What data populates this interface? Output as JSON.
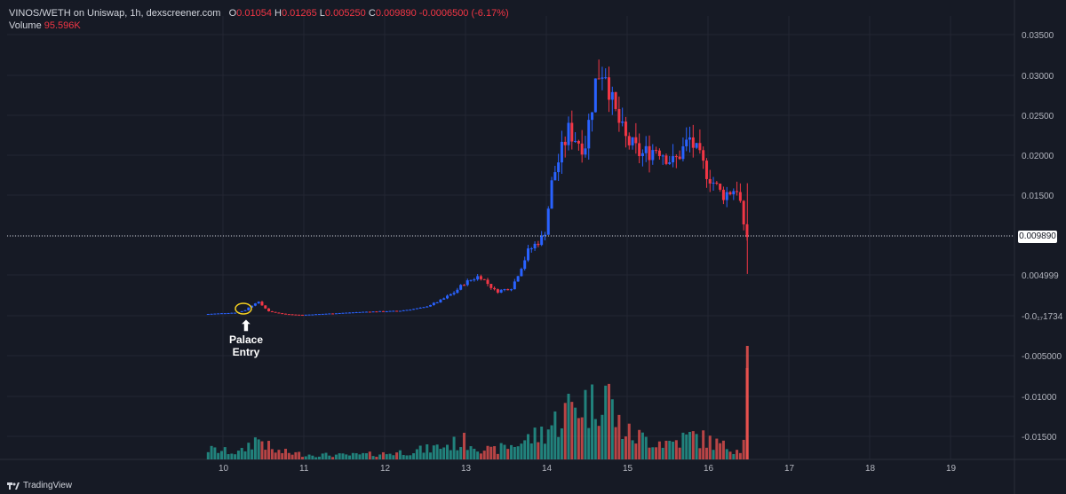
{
  "legend": {
    "pair": "VINOS/WETH on Uniswap, 1h, dexscreener.com",
    "o_label": "O",
    "o": "0.01054",
    "h_label": "H",
    "h": "0.01265",
    "l_label": "L",
    "l": "0.005250",
    "c_label": "C",
    "c": "0.009890",
    "change": "-0.0006500 (-6.17%)",
    "volume_label": "Volume",
    "volume": "95.596K"
  },
  "last_price_label": "0.009890",
  "annotation": {
    "text": "Palace Entry",
    "arrow": "⬆"
  },
  "footer": {
    "brand": "TradingView",
    "icon": "tradingview-logo-icon"
  },
  "colors": {
    "background": "#161a25",
    "up": "#2962ff",
    "down": "#f23645",
    "vol_up": "#26a69a",
    "vol_down": "#ef5350",
    "grid": "#232632",
    "annotation_circle": "#f5d020"
  },
  "chart_data": {
    "type": "candlestick",
    "x_ticks": [
      "10",
      "11",
      "12",
      "13",
      "14",
      "15",
      "16",
      "17",
      "18",
      "19"
    ],
    "y_ticks": [
      "0.03500",
      "0.03000",
      "0.02500",
      "0.02000",
      "0.01500",
      "0.009890",
      "0.004999",
      "-0.0₁₇1734",
      "-0.005000",
      "-0.01000",
      "-0.01500"
    ],
    "grid": true,
    "series": [
      {
        "name": "Volume",
        "note": "volume bars, relative heights",
        "values": []
      }
    ],
    "price_points": [
      [
        9.8,
        0.0002
      ],
      [
        10.0,
        0.0003
      ],
      [
        10.2,
        0.0004
      ],
      [
        10.3,
        0.0007
      ],
      [
        10.45,
        0.0018
      ],
      [
        10.6,
        0.0005
      ],
      [
        10.8,
        0.0002
      ],
      [
        11.0,
        0.0001
      ],
      [
        11.4,
        0.0003
      ],
      [
        11.8,
        0.0005
      ],
      [
        12.2,
        0.0006
      ],
      [
        12.5,
        0.001
      ],
      [
        12.7,
        0.0018
      ],
      [
        12.9,
        0.003
      ],
      [
        13.0,
        0.004
      ],
      [
        13.2,
        0.005
      ],
      [
        13.4,
        0.003
      ],
      [
        13.6,
        0.0035
      ],
      [
        13.8,
        0.008
      ],
      [
        14.0,
        0.01
      ],
      [
        14.1,
        0.017
      ],
      [
        14.3,
        0.023
      ],
      [
        14.5,
        0.021
      ],
      [
        14.65,
        0.03
      ],
      [
        14.75,
        0.031
      ],
      [
        14.85,
        0.026
      ],
      [
        15.0,
        0.022
      ],
      [
        15.2,
        0.02
      ],
      [
        15.4,
        0.021
      ],
      [
        15.6,
        0.019
      ],
      [
        15.8,
        0.022
      ],
      [
        16.0,
        0.018
      ],
      [
        16.2,
        0.015
      ],
      [
        16.4,
        0.016
      ],
      [
        16.47,
        0.0105
      ],
      [
        16.48,
        0.0099
      ]
    ],
    "volume_points": [
      [
        9.8,
        0.12
      ],
      [
        10.0,
        0.1
      ],
      [
        10.2,
        0.08
      ],
      [
        10.35,
        0.22
      ],
      [
        10.45,
        0.25
      ],
      [
        10.6,
        0.1
      ],
      [
        11.0,
        0.06
      ],
      [
        11.5,
        0.05
      ],
      [
        12.0,
        0.07
      ],
      [
        12.5,
        0.12
      ],
      [
        12.9,
        0.2
      ],
      [
        13.0,
        0.22
      ],
      [
        13.3,
        0.1
      ],
      [
        13.6,
        0.18
      ],
      [
        13.9,
        0.3
      ],
      [
        14.1,
        0.45
      ],
      [
        14.25,
        0.6
      ],
      [
        14.4,
        0.7
      ],
      [
        14.55,
        0.65
      ],
      [
        14.7,
        0.95
      ],
      [
        14.85,
        0.45
      ],
      [
        15.0,
        0.3
      ],
      [
        15.2,
        0.25
      ],
      [
        15.5,
        0.2
      ],
      [
        15.8,
        0.28
      ],
      [
        16.0,
        0.22
      ],
      [
        16.2,
        0.15
      ],
      [
        16.4,
        0.12
      ],
      [
        16.47,
        1.0
      ]
    ]
  }
}
